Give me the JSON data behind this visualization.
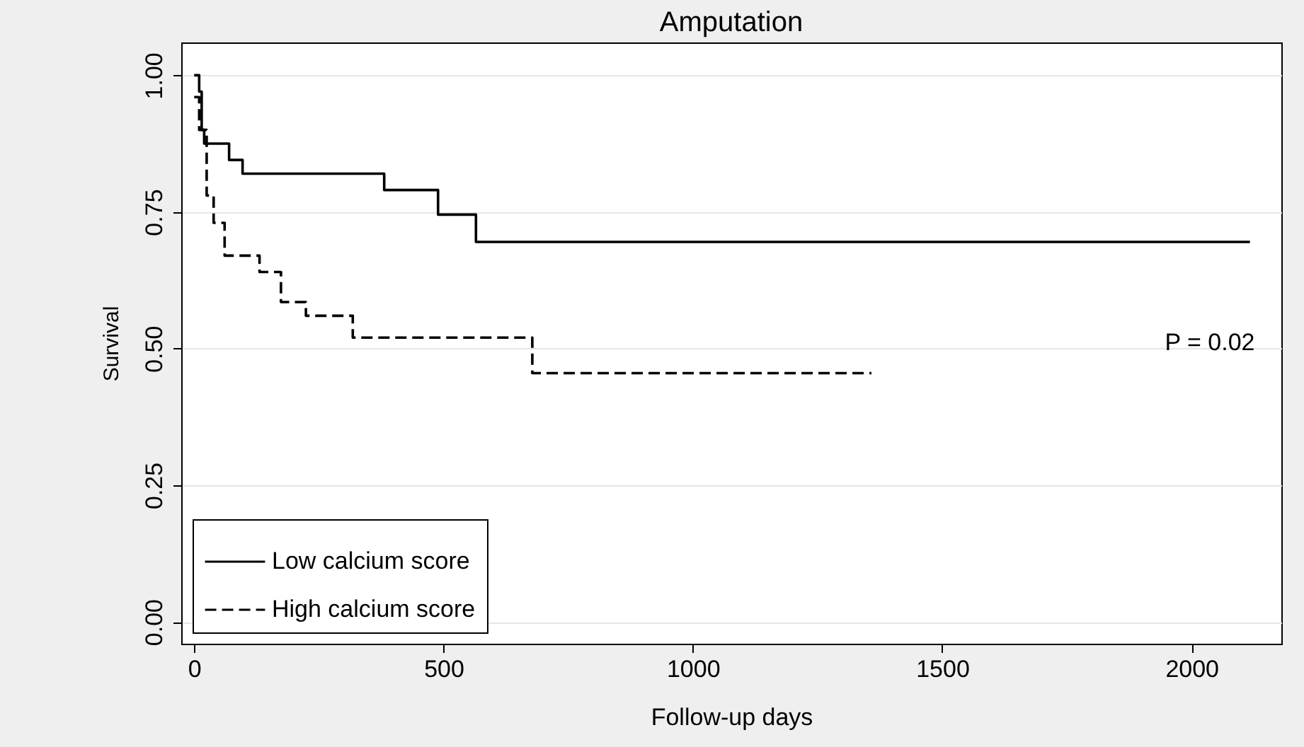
{
  "chart_data": {
    "type": "step",
    "title": "Amputation",
    "xlabel": "Follow-up days",
    "ylabel": "Survival",
    "xlim": [
      -26,
      2180
    ],
    "xticks": [
      0,
      500,
      1000,
      1500,
      2000
    ],
    "ylim": [
      -0.04,
      1.06
    ],
    "yticks": [
      {
        "value": 0,
        "label": "0.00"
      },
      {
        "value": 0.25,
        "label": "0.25"
      },
      {
        "value": 0.5,
        "label": "0.50"
      },
      {
        "value": 0.75,
        "label": "0.75"
      },
      {
        "value": 1,
        "label": "1.00"
      }
    ],
    "grid": "y",
    "legend": "bottom left",
    "annotations": [
      "P = 0.02"
    ],
    "series": [
      {
        "name": "Low calcium score",
        "color": "#000000",
        "line_style": "solid",
        "x": [
          0,
          10,
          15,
          20,
          70,
          97,
          381,
          489,
          565,
          2117
        ],
        "values": [
          1,
          0.97,
          0.9,
          0.875,
          0.845,
          0.82,
          0.79,
          0.745,
          0.695,
          0.695
        ]
      },
      {
        "name": "High calcium score",
        "color": "#000000",
        "line_style": "dashed",
        "x": [
          0,
          10,
          25,
          39,
          61,
          131,
          174,
          224,
          318,
          678,
          1358
        ],
        "values": [
          0.96,
          0.9,
          0.78,
          0.73,
          0.67,
          0.64,
          0.585,
          0.56,
          0.52,
          0.455,
          0.455
        ]
      }
    ]
  }
}
